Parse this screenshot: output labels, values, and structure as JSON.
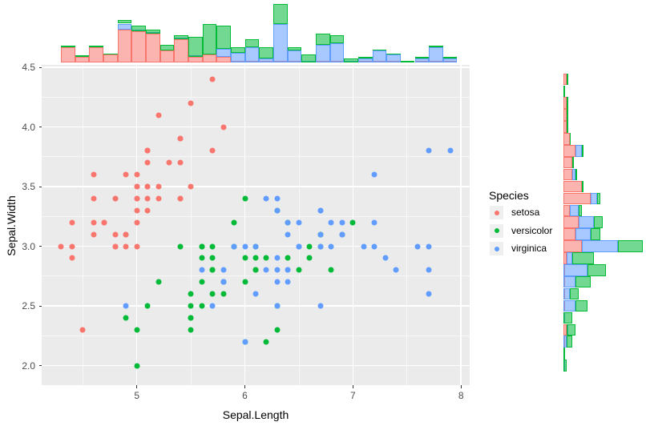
{
  "colors": {
    "setosa": "#F8766D",
    "versicolor": "#00BA38",
    "virginica": "#619CFF",
    "panel_background": "#EBEBEB",
    "gridline": "#FFFFFF",
    "tick_text": "#4D4D4D",
    "fill_alpha": 0.55
  },
  "legend": {
    "title": "Species",
    "items": [
      {
        "label": "setosa",
        "species": "setosa"
      },
      {
        "label": "versicolor",
        "species": "versicolor"
      },
      {
        "label": "virginica",
        "species": "virginica"
      }
    ]
  },
  "chart_data": {
    "type": "scatter",
    "subtype": "scatter-with-marginal-stacked-histograms",
    "title": "",
    "xlabel": "Sepal.Length",
    "ylabel": "Sepal.Width",
    "xlim": [
      4.12,
      8.08
    ],
    "ylim": [
      1.83,
      4.52
    ],
    "x_ticks": [
      5,
      6,
      7,
      8
    ],
    "y_ticks": [
      "2.0",
      "2.5",
      "3.0",
      "3.5",
      "4.0",
      "4.5"
    ],
    "x_minor_ticks": [
      4.5,
      5.5,
      6.5,
      7.5
    ],
    "y_minor_ticks": [
      2.25,
      2.75,
      3.25,
      3.75,
      4.25
    ],
    "grid": true,
    "legend_position": "right",
    "scatter": {
      "series": [
        {
          "name": "setosa",
          "points": [
            [
              5.1,
              3.5
            ],
            [
              4.9,
              3.0
            ],
            [
              4.7,
              3.2
            ],
            [
              4.6,
              3.1
            ],
            [
              5.0,
              3.6
            ],
            [
              5.4,
              3.9
            ],
            [
              4.6,
              3.4
            ],
            [
              5.0,
              3.4
            ],
            [
              4.4,
              2.9
            ],
            [
              4.9,
              3.1
            ],
            [
              5.4,
              3.7
            ],
            [
              4.8,
              3.4
            ],
            [
              4.8,
              3.0
            ],
            [
              4.3,
              3.0
            ],
            [
              5.8,
              4.0
            ],
            [
              5.7,
              4.4
            ],
            [
              5.4,
              3.9
            ],
            [
              5.1,
              3.5
            ],
            [
              5.7,
              3.8
            ],
            [
              5.1,
              3.8
            ],
            [
              5.4,
              3.4
            ],
            [
              5.1,
              3.7
            ],
            [
              4.6,
              3.6
            ],
            [
              5.1,
              3.3
            ],
            [
              4.8,
              3.4
            ],
            [
              5.0,
              3.0
            ],
            [
              5.0,
              3.4
            ],
            [
              5.2,
              3.5
            ],
            [
              5.2,
              3.4
            ],
            [
              4.7,
              3.2
            ],
            [
              4.8,
              3.1
            ],
            [
              5.4,
              3.4
            ],
            [
              5.2,
              4.1
            ],
            [
              5.5,
              4.2
            ],
            [
              4.9,
              3.1
            ],
            [
              5.0,
              3.2
            ],
            [
              5.5,
              3.5
            ],
            [
              4.9,
              3.6
            ],
            [
              4.4,
              3.0
            ],
            [
              5.1,
              3.4
            ],
            [
              5.0,
              3.5
            ],
            [
              4.5,
              2.3
            ],
            [
              4.4,
              3.2
            ],
            [
              5.0,
              3.5
            ],
            [
              5.1,
              3.8
            ],
            [
              4.8,
              3.0
            ],
            [
              5.1,
              3.8
            ],
            [
              4.6,
              3.2
            ],
            [
              5.3,
              3.7
            ],
            [
              5.0,
              3.3
            ]
          ]
        },
        {
          "name": "versicolor",
          "points": [
            [
              7.0,
              3.2
            ],
            [
              6.4,
              3.2
            ],
            [
              6.9,
              3.1
            ],
            [
              5.5,
              2.3
            ],
            [
              6.5,
              2.8
            ],
            [
              5.7,
              2.8
            ],
            [
              6.3,
              3.3
            ],
            [
              4.9,
              2.4
            ],
            [
              6.6,
              2.9
            ],
            [
              5.2,
              2.7
            ],
            [
              5.0,
              2.0
            ],
            [
              5.9,
              3.0
            ],
            [
              6.0,
              2.2
            ],
            [
              6.1,
              2.9
            ],
            [
              5.6,
              2.9
            ],
            [
              6.7,
              3.1
            ],
            [
              5.6,
              3.0
            ],
            [
              5.8,
              2.7
            ],
            [
              6.2,
              2.2
            ],
            [
              5.6,
              2.5
            ],
            [
              5.9,
              3.2
            ],
            [
              6.1,
              2.8
            ],
            [
              6.3,
              2.5
            ],
            [
              6.1,
              2.8
            ],
            [
              6.4,
              2.9
            ],
            [
              6.6,
              3.0
            ],
            [
              6.8,
              2.8
            ],
            [
              6.7,
              3.0
            ],
            [
              6.0,
              2.9
            ],
            [
              5.7,
              2.6
            ],
            [
              5.5,
              2.4
            ],
            [
              5.5,
              2.4
            ],
            [
              5.8,
              2.7
            ],
            [
              6.0,
              2.7
            ],
            [
              5.4,
              3.0
            ],
            [
              6.0,
              3.4
            ],
            [
              6.7,
              3.1
            ],
            [
              6.3,
              2.3
            ],
            [
              5.6,
              3.0
            ],
            [
              5.5,
              2.5
            ],
            [
              5.5,
              2.6
            ],
            [
              6.1,
              3.0
            ],
            [
              5.8,
              2.6
            ],
            [
              5.0,
              2.3
            ],
            [
              5.6,
              2.7
            ],
            [
              5.7,
              3.0
            ],
            [
              5.7,
              2.9
            ],
            [
              6.2,
              2.9
            ],
            [
              5.1,
              2.5
            ],
            [
              5.7,
              2.8
            ]
          ]
        },
        {
          "name": "virginica",
          "points": [
            [
              6.3,
              3.3
            ],
            [
              5.8,
              2.7
            ],
            [
              7.1,
              3.0
            ],
            [
              6.3,
              2.9
            ],
            [
              6.5,
              3.0
            ],
            [
              7.6,
              3.0
            ],
            [
              4.9,
              2.5
            ],
            [
              7.3,
              2.9
            ],
            [
              6.7,
              2.5
            ],
            [
              7.2,
              3.6
            ],
            [
              6.5,
              3.2
            ],
            [
              6.4,
              2.7
            ],
            [
              6.8,
              3.0
            ],
            [
              5.7,
              2.5
            ],
            [
              5.8,
              2.8
            ],
            [
              6.4,
              3.2
            ],
            [
              6.5,
              3.0
            ],
            [
              7.7,
              3.8
            ],
            [
              7.7,
              2.6
            ],
            [
              6.0,
              2.2
            ],
            [
              6.9,
              3.2
            ],
            [
              5.6,
              2.8
            ],
            [
              7.7,
              2.8
            ],
            [
              6.3,
              2.7
            ],
            [
              6.7,
              3.3
            ],
            [
              7.2,
              3.2
            ],
            [
              6.2,
              2.8
            ],
            [
              6.1,
              3.0
            ],
            [
              6.4,
              2.8
            ],
            [
              7.2,
              3.0
            ],
            [
              7.4,
              2.8
            ],
            [
              7.9,
              3.8
            ],
            [
              6.4,
              2.8
            ],
            [
              6.3,
              2.8
            ],
            [
              6.1,
              2.6
            ],
            [
              7.7,
              3.0
            ],
            [
              6.3,
              3.4
            ],
            [
              6.4,
              3.1
            ],
            [
              6.0,
              3.0
            ],
            [
              6.9,
              3.1
            ],
            [
              6.7,
              3.1
            ],
            [
              6.9,
              3.1
            ],
            [
              5.8,
              2.7
            ],
            [
              6.8,
              3.2
            ],
            [
              6.7,
              3.3
            ],
            [
              6.7,
              3.0
            ],
            [
              6.3,
              2.5
            ],
            [
              6.5,
              3.0
            ],
            [
              6.2,
              3.4
            ],
            [
              5.9,
              3.0
            ]
          ]
        }
      ]
    },
    "top_histogram": {
      "variable": "Sepal.Length",
      "stack_order": [
        "setosa",
        "virginica",
        "versicolor"
      ],
      "bins": [
        [
          4,
          0,
          0
        ],
        [
          1.5,
          0,
          0
        ],
        [
          4,
          0,
          0
        ],
        [
          2,
          0,
          0
        ],
        [
          8.5,
          1.5,
          1
        ],
        [
          8,
          0,
          1.5
        ],
        [
          7.5,
          0,
          1
        ],
        [
          3,
          0,
          1.5
        ],
        [
          6,
          0,
          1
        ],
        [
          1.5,
          0,
          5
        ],
        [
          2,
          0,
          8
        ],
        [
          1.5,
          2,
          6
        ],
        [
          0,
          2.5,
          1.5
        ],
        [
          0,
          4,
          2
        ],
        [
          0,
          1,
          3
        ],
        [
          0,
          10,
          5
        ],
        [
          0,
          3,
          1
        ],
        [
          0,
          0,
          2
        ],
        [
          0,
          4.5,
          3
        ],
        [
          0,
          5,
          2
        ],
        [
          0,
          0,
          1
        ],
        [
          0,
          1,
          0
        ],
        [
          0,
          3,
          0
        ],
        [
          0,
          2,
          0
        ],
        [
          0,
          0,
          0
        ],
        [
          0,
          1,
          0
        ],
        [
          0,
          4,
          0
        ],
        [
          0,
          1,
          0
        ]
      ]
    },
    "right_histogram": {
      "variable": "Sepal.Width",
      "stack_order": [
        "setosa",
        "virginica",
        "versicolor"
      ],
      "rows": [
        {
          "sw": 4.4,
          "counts": [
            1,
            0,
            0
          ]
        },
        {
          "sw": 4.3,
          "counts": [
            0,
            0,
            0
          ]
        },
        {
          "sw": 4.2,
          "counts": [
            1,
            0,
            0
          ]
        },
        {
          "sw": 4.1,
          "counts": [
            1,
            0,
            0
          ]
        },
        {
          "sw": 4.0,
          "counts": [
            1,
            0,
            0
          ]
        },
        {
          "sw": 3.9,
          "counts": [
            2,
            0,
            0
          ]
        },
        {
          "sw": 3.8,
          "counts": [
            4,
            2,
            0
          ]
        },
        {
          "sw": 3.7,
          "counts": [
            3,
            0,
            0
          ]
        },
        {
          "sw": 3.6,
          "counts": [
            3,
            1,
            0
          ]
        },
        {
          "sw": 3.5,
          "counts": [
            6,
            0,
            0
          ]
        },
        {
          "sw": 3.4,
          "counts": [
            9,
            2,
            1
          ]
        },
        {
          "sw": 3.3,
          "counts": [
            2,
            3,
            1
          ]
        },
        {
          "sw": 3.2,
          "counts": [
            5,
            5,
            3
          ]
        },
        {
          "sw": 3.1,
          "counts": [
            4,
            5,
            3
          ]
        },
        {
          "sw": 3.0,
          "counts": [
            6,
            12,
            8
          ]
        },
        {
          "sw": 2.9,
          "counts": [
            1,
            2,
            7
          ]
        },
        {
          "sw": 2.8,
          "counts": [
            0,
            8,
            6
          ]
        },
        {
          "sw": 2.7,
          "counts": [
            0,
            4,
            5
          ]
        },
        {
          "sw": 2.6,
          "counts": [
            0,
            2,
            3
          ]
        },
        {
          "sw": 2.5,
          "counts": [
            0,
            4,
            4
          ]
        },
        {
          "sw": 2.4,
          "counts": [
            0,
            0,
            3
          ]
        },
        {
          "sw": 2.3,
          "counts": [
            1,
            0,
            3
          ]
        },
        {
          "sw": 2.2,
          "counts": [
            0,
            1,
            2
          ]
        },
        {
          "sw": 2.1,
          "counts": [
            0,
            0,
            0
          ]
        },
        {
          "sw": 2.0,
          "counts": [
            0,
            0,
            1
          ]
        }
      ]
    }
  }
}
